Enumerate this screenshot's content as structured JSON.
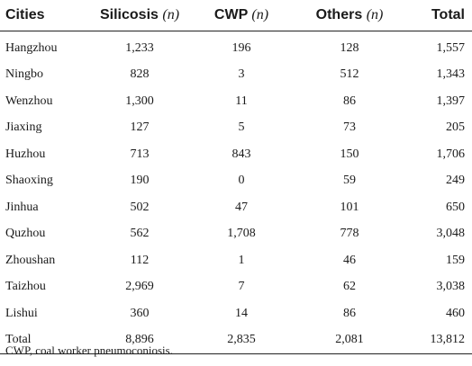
{
  "table": {
    "headers": {
      "city": "Cities",
      "silicosis": "Silicosis",
      "cwp": "CWP",
      "others": "Others",
      "n": "(n)",
      "total": "Total"
    },
    "rows": [
      {
        "city": "Hangzhou",
        "silicosis": "1,233",
        "cwp": "196",
        "others": "128",
        "total": "1,557"
      },
      {
        "city": "Ningbo",
        "silicosis": "828",
        "cwp": "3",
        "others": "512",
        "total": "1,343"
      },
      {
        "city": "Wenzhou",
        "silicosis": "1,300",
        "cwp": "11",
        "others": "86",
        "total": "1,397"
      },
      {
        "city": "Jiaxing",
        "silicosis": "127",
        "cwp": "5",
        "others": "73",
        "total": "205"
      },
      {
        "city": "Huzhou",
        "silicosis": "713",
        "cwp": "843",
        "others": "150",
        "total": "1,706"
      },
      {
        "city": "Shaoxing",
        "silicosis": "190",
        "cwp": "0",
        "others": "59",
        "total": "249"
      },
      {
        "city": "Jinhua",
        "silicosis": "502",
        "cwp": "47",
        "others": "101",
        "total": "650"
      },
      {
        "city": "Quzhou",
        "silicosis": "562",
        "cwp": "1,708",
        "others": "778",
        "total": "3,048"
      },
      {
        "city": "Zhoushan",
        "silicosis": "112",
        "cwp": "1",
        "others": "46",
        "total": "159"
      },
      {
        "city": "Taizhou",
        "silicosis": "2,969",
        "cwp": "7",
        "others": "62",
        "total": "3,038"
      },
      {
        "city": "Lishui",
        "silicosis": "360",
        "cwp": "14",
        "others": "86",
        "total": "460"
      },
      {
        "city": "Total",
        "silicosis": "8,896",
        "cwp": "2,835",
        "others": "2,081",
        "total": "13,812"
      }
    ]
  },
  "footnote": "CWP, coal worker pneumoconiosis."
}
